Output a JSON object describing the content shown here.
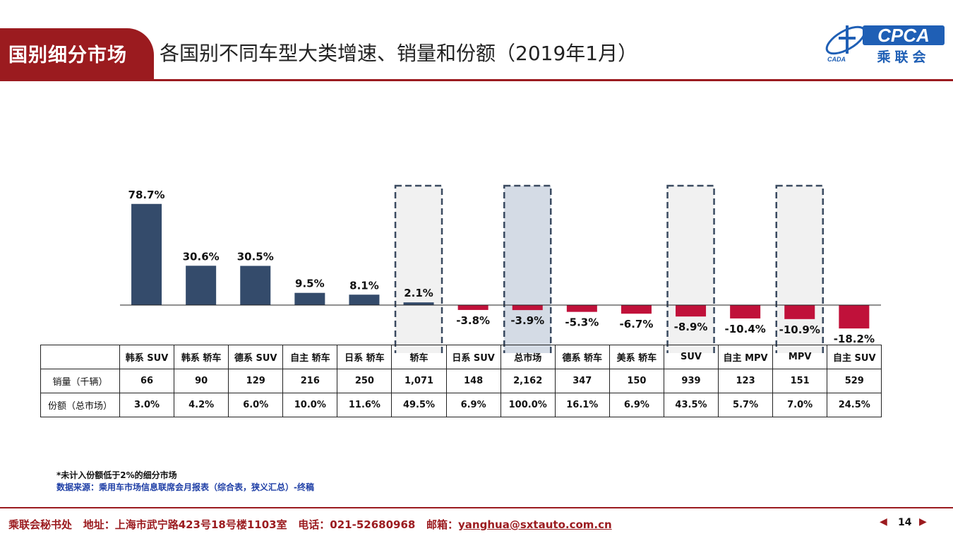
{
  "header": {
    "tag": "国别细分市场",
    "title": "各国别不同车型大类增速、销量和份额（2019年1月）",
    "logo_mark": "CPCA",
    "logo_sub": "乘联会",
    "logo_small": "CADA"
  },
  "colors": {
    "positive": "#344b6b",
    "negative": "#c0113a",
    "brand": "#9b1b1f",
    "link": "#1f3fa6"
  },
  "chart_data": {
    "type": "bar",
    "categories": [
      "韩系 SUV",
      "韩系 轿车",
      "德系 SUV",
      "自主 轿车",
      "日系 轿车",
      "轿车",
      "日系 SUV",
      "总市场",
      "德系 轿车",
      "美系 轿车",
      "SUV",
      "自主 MPV",
      "MPV",
      "自主 SUV"
    ],
    "series": [
      {
        "values": [
          78.7,
          30.6,
          30.5,
          9.5,
          8.1,
          2.1,
          -3.8,
          -3.9,
          -5.3,
          -6.7,
          -8.9,
          -10.4,
          -10.9,
          -18.2
        ]
      }
    ],
    "data_labels": [
      "78.7%",
      "30.6%",
      "30.5%",
      "9.5%",
      "8.1%",
      "2.1%",
      "-3.8%",
      "-3.9%",
      "-5.3%",
      "-6.7%",
      "-8.9%",
      "-10.4%",
      "-10.9%",
      "-18.2%"
    ],
    "highlighted": [
      "轿车",
      "总市场",
      "SUV",
      "MPV"
    ],
    "ylim": [
      -20,
      80
    ],
    "grid": false,
    "legend": "none"
  },
  "table": {
    "rows": [
      {
        "label": "销量（千辆）",
        "values": [
          "66",
          "90",
          "129",
          "216",
          "250",
          "1,071",
          "148",
          "2,162",
          "347",
          "150",
          "939",
          "123",
          "151",
          "529"
        ]
      },
      {
        "label": "份额（总市场）",
        "values": [
          "3.0%",
          "4.2%",
          "6.0%",
          "10.0%",
          "11.6%",
          "49.5%",
          "6.9%",
          "100.0%",
          "16.1%",
          "6.9%",
          "43.5%",
          "5.7%",
          "7.0%",
          "24.5%"
        ]
      }
    ]
  },
  "notes": {
    "note": "*未计入份额低于2%的细分市场",
    "source": "数据来源：乘用车市场信息联席会月报表（综合表，狭义汇总）-终稿"
  },
  "footer": {
    "org": "乘联会秘书处",
    "address": "地址：上海市武宁路423号18号楼1103室",
    "phone": "电话：021-52680968",
    "email_label": "邮箱：",
    "email": "yanghua@sxtauto.com.cn",
    "page": "14"
  }
}
